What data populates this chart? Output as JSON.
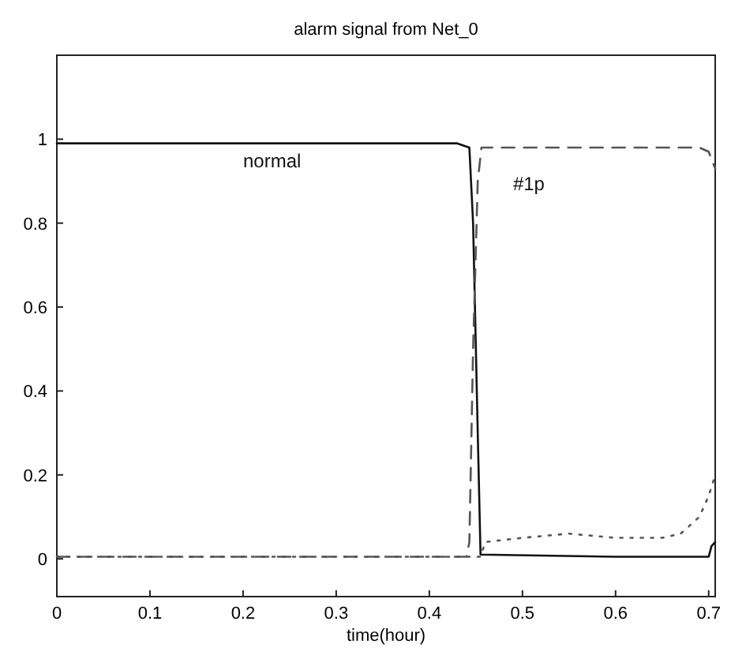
{
  "chart_data": {
    "type": "line",
    "title": "alarm signal from Net_0",
    "xlabel": "time(hour)",
    "xlim": [
      0,
      0.707
    ],
    "ylim": [
      -0.09,
      1.2
    ],
    "xticks": [
      0,
      0.1,
      0.2,
      0.3,
      0.4,
      0.5,
      0.6,
      0.7
    ],
    "yticks": [
      0,
      0.2,
      0.4,
      0.6,
      0.8,
      1
    ],
    "grid": false,
    "series": [
      {
        "name": "normal",
        "color": "#111111",
        "line_style": "solid",
        "x": [
          0,
          0.43,
          0.443,
          0.447,
          0.452,
          0.455,
          0.6,
          0.7,
          0.703,
          0.707
        ],
        "values": [
          0.99,
          0.99,
          0.98,
          0.8,
          0.3,
          0.01,
          0.005,
          0.005,
          0.03,
          0.04
        ]
      },
      {
        "name": "#1p",
        "color": "#555555",
        "line_style": "dashed",
        "x": [
          0,
          0.44,
          0.443,
          0.447,
          0.452,
          0.456,
          0.6,
          0.69,
          0.7,
          0.707
        ],
        "values": [
          0.005,
          0.005,
          0.04,
          0.5,
          0.9,
          0.98,
          0.98,
          0.98,
          0.97,
          0.93
        ]
      },
      {
        "color": "#555555",
        "line_style": "dotted",
        "x": [
          0,
          0.455,
          0.46,
          0.5,
          0.55,
          0.6,
          0.65,
          0.67,
          0.69,
          0.7,
          0.707
        ],
        "values": [
          0.005,
          0.005,
          0.04,
          0.05,
          0.06,
          0.05,
          0.05,
          0.06,
          0.1,
          0.15,
          0.2
        ]
      }
    ]
  }
}
